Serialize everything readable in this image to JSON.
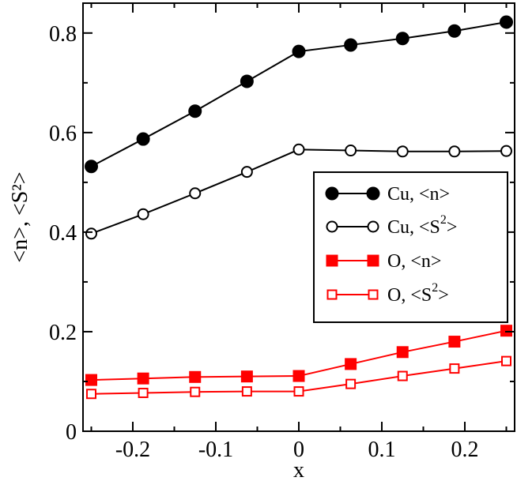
{
  "chart_data": {
    "type": "line",
    "title": "",
    "xlabel": "x",
    "ylabel": "<n>, <S²>",
    "xlim": [
      -0.26,
      0.26
    ],
    "ylim": [
      0,
      0.86
    ],
    "xticks": [
      -0.2,
      -0.1,
      0,
      0.1,
      0.2
    ],
    "xtick_labels": [
      "-0.2",
      "-0.1",
      "0",
      "0.1",
      "0.2"
    ],
    "yticks": [
      0,
      0.2,
      0.4,
      0.6,
      0.8
    ],
    "ytick_labels": [
      "0",
      "0.2",
      "0.4",
      "0.6",
      "0.8"
    ],
    "x": [
      -0.25,
      -0.1875,
      -0.125,
      -0.0625,
      0,
      0.0625,
      0.125,
      0.1875,
      0.25
    ],
    "legend_position": "right-middle",
    "series": [
      {
        "name": "Cu, <n>",
        "label_main": "Cu, <n>",
        "label_sup": "",
        "label_tail": "",
        "color": "#000000",
        "marker": "circle",
        "filled": true,
        "values": [
          0.532,
          0.587,
          0.643,
          0.703,
          0.763,
          0.776,
          0.789,
          0.804,
          0.822
        ]
      },
      {
        "name": "Cu, <S²>",
        "label_main": "Cu, <S",
        "label_sup": "2",
        "label_tail": ">",
        "color": "#000000",
        "marker": "circle",
        "filled": false,
        "values": [
          0.397,
          0.436,
          0.478,
          0.521,
          0.566,
          0.564,
          0.562,
          0.562,
          0.563
        ]
      },
      {
        "name": "O, <n>",
        "label_main": "O, <n>",
        "label_sup": "",
        "label_tail": "",
        "color": "#ff0000",
        "marker": "square",
        "filled": true,
        "values": [
          0.103,
          0.106,
          0.109,
          0.11,
          0.111,
          0.135,
          0.159,
          0.18,
          0.202
        ]
      },
      {
        "name": "O, <S²>",
        "label_main": "O, <S",
        "label_sup": "2",
        "label_tail": ">",
        "color": "#ff0000",
        "marker": "square",
        "filled": false,
        "values": [
          0.075,
          0.077,
          0.079,
          0.08,
          0.08,
          0.095,
          0.111,
          0.126,
          0.141
        ]
      }
    ]
  }
}
